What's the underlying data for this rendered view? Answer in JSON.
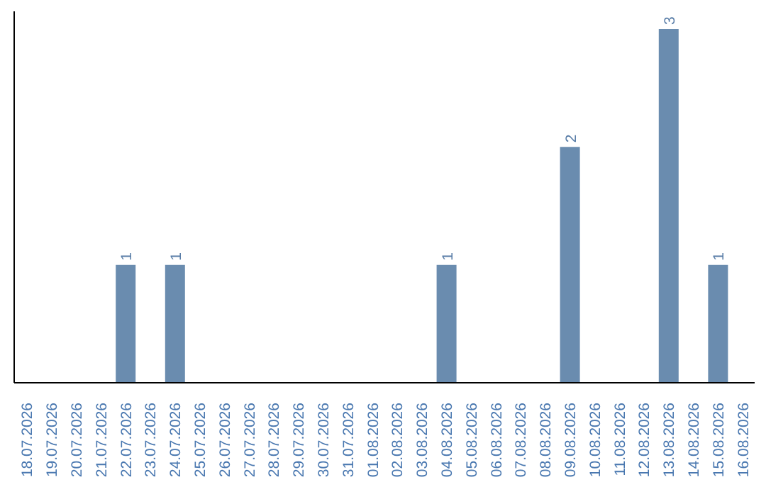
{
  "chart_data": {
    "type": "bar",
    "categories": [
      "18.07.2026",
      "19.07.2026",
      "20.07.2026",
      "21.07.2026",
      "22.07.2026",
      "23.07.2026",
      "24.07.2026",
      "25.07.2026",
      "26.07.2026",
      "27.07.2026",
      "28.07.2026",
      "29.07.2026",
      "30.07.2026",
      "31.07.2026",
      "01.08.2026",
      "02.08.2026",
      "03.08.2026",
      "04.08.2026",
      "05.08.2026",
      "06.08.2026",
      "07.08.2026",
      "08.08.2026",
      "09.08.2026",
      "10.08.2026",
      "11.08.2026",
      "12.08.2026",
      "13.08.2026",
      "14.08.2026",
      "15.08.2026",
      "16.08.2026"
    ],
    "values": [
      0,
      0,
      0,
      0,
      1,
      0,
      1,
      0,
      0,
      0,
      0,
      0,
      0,
      0,
      0,
      0,
      0,
      1,
      0,
      0,
      0,
      0,
      2,
      0,
      0,
      0,
      3,
      0,
      1,
      0
    ],
    "value_labels": [
      null,
      null,
      null,
      null,
      "1",
      null,
      "1",
      null,
      null,
      null,
      null,
      null,
      null,
      null,
      null,
      null,
      null,
      "1",
      null,
      null,
      null,
      null,
      "2",
      null,
      null,
      null,
      "3",
      null,
      "1",
      null
    ],
    "color": "#6a8caf",
    "tick_labels": "x",
    "grid": false
  }
}
